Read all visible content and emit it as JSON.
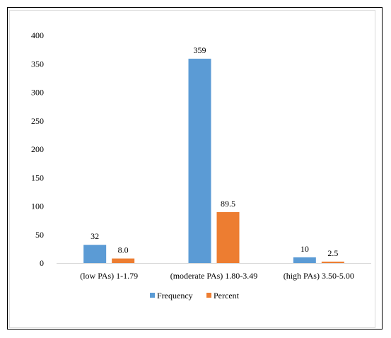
{
  "chart_data": {
    "type": "bar",
    "title": "",
    "xlabel": "",
    "ylabel": "",
    "categories": [
      "(low PAs) 1-1.79",
      "(moderate PAs) 1.80-3.49",
      "(high PAs) 3.50-5.00"
    ],
    "series": [
      {
        "name": "Frequency",
        "values": [
          32,
          359,
          10
        ],
        "labels": [
          "32",
          "359",
          "10"
        ],
        "color": "#5b9bd5"
      },
      {
        "name": "Percent",
        "values": [
          8.0,
          89.5,
          2.5
        ],
        "labels": [
          "8.0",
          "89.5",
          "2.5"
        ],
        "color": "#ed7d31"
      }
    ],
    "ylim": [
      0,
      400
    ],
    "yticks": [
      "0",
      "50",
      "100",
      "150",
      "200",
      "250",
      "300",
      "350",
      "400"
    ],
    "grid": false,
    "legend": "bottom-center"
  }
}
